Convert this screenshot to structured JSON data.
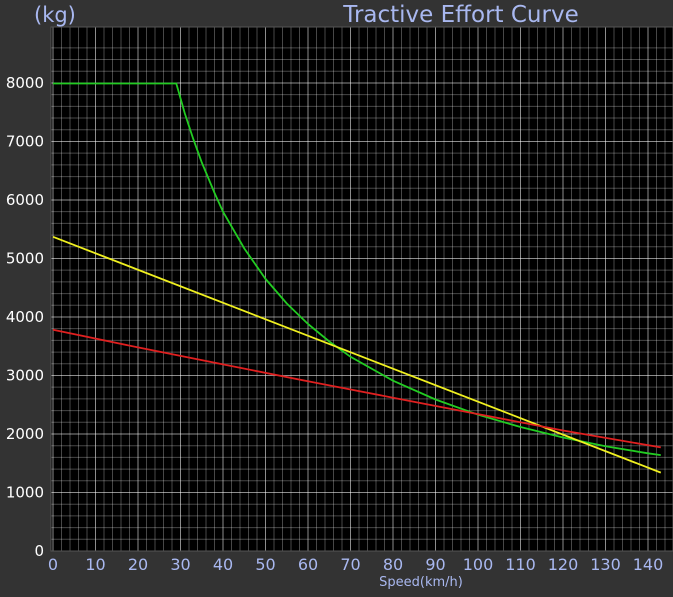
{
  "chart_data": {
    "type": "line",
    "title": "Tractive Effort Curve",
    "unit_label": "(kg)",
    "xlabel": "Speed(km/h)",
    "ylabel": "",
    "xlim": [
      0,
      144
    ],
    "ylim": [
      0,
      8700
    ],
    "x_ticks": [
      0,
      10,
      20,
      30,
      40,
      50,
      60,
      70,
      80,
      90,
      100,
      110,
      120,
      130,
      140
    ],
    "y_ticks": [
      0,
      1000,
      2000,
      3000,
      4000,
      5000,
      6000,
      7000,
      8000
    ],
    "grid": true,
    "series": [
      {
        "color": "#22cc22",
        "x": [
          0,
          29,
          31,
          33,
          35,
          38,
          40,
          45,
          50,
          55,
          60,
          65,
          70,
          80,
          90,
          100,
          110,
          120,
          130,
          140,
          143
        ],
        "y": [
          7990,
          7990,
          7480,
          7040,
          6640,
          6120,
          5800,
          5170,
          4650,
          4230,
          3880,
          3580,
          3320,
          2910,
          2590,
          2330,
          2120,
          1940,
          1790,
          1670,
          1640
        ]
      },
      {
        "color": "#f0f020",
        "x": [
          0,
          143
        ],
        "y": [
          5370,
          1340
        ]
      },
      {
        "color": "#e02020",
        "x": [
          0,
          20,
          40,
          60,
          80,
          100,
          120,
          143
        ],
        "y": [
          3780,
          3480,
          3190,
          2900,
          2620,
          2340,
          2060,
          1770
        ]
      }
    ],
    "colors": {
      "background": "#333333",
      "plot_background": "#000000",
      "grid": "#ffffff",
      "axis_text": "#a9b8f0"
    }
  }
}
